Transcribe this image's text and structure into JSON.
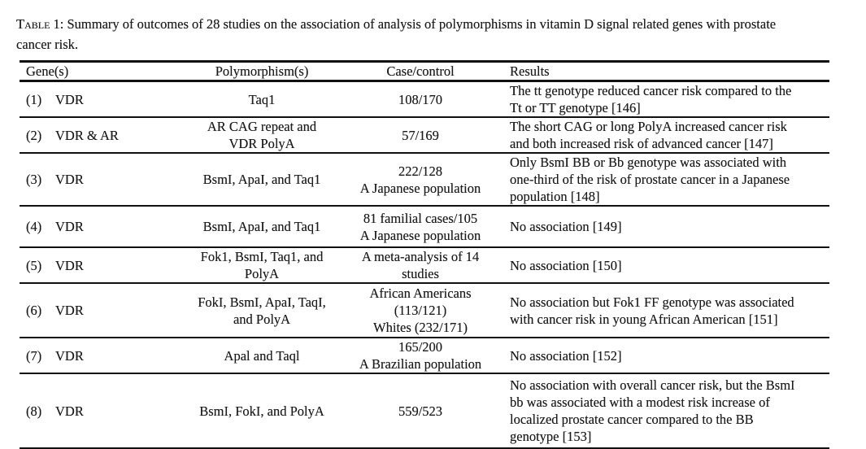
{
  "colors": {
    "background": "#ffffff",
    "text": "#1c1c1e",
    "rule": "#101010"
  },
  "caption": {
    "label": "Table 1:",
    "text": "Summary of outcomes of 28 studies on the association of analysis of polymorphisms in vitamin D signal related genes with prostate\ncancer risk."
  },
  "table": {
    "headers": [
      "Gene(s)",
      "Polymorphism(s)",
      "Case/control",
      "Results"
    ],
    "rows": [
      {
        "num": "(1)",
        "gene": "VDR",
        "polymorphism": "Taq1",
        "case_control": "108/170",
        "results": "The tt genotype reduced cancer risk compared to the\nTt or TT genotype [146]"
      },
      {
        "num": "(2)",
        "gene": "VDR & AR",
        "polymorphism": "AR CAG repeat and\nVDR PolyA",
        "case_control": "57/169",
        "results": "The short CAG or long PolyA increased cancer risk\nand both increased risk of advanced cancer [147]"
      },
      {
        "num": "(3)",
        "gene": "VDR",
        "polymorphism": "BsmI, ApaI, and Taq1",
        "case_control": "222/128\nA Japanese population",
        "results": "Only BsmI BB or Bb genotype was associated with\none-third of the risk of prostate cancer in a Japanese\npopulation [148]"
      },
      {
        "num": "(4)",
        "gene": "VDR",
        "polymorphism": "BsmI, ApaI, and Taq1",
        "case_control": "81 familial cases/105\nA Japanese population",
        "results": "No association [149]"
      },
      {
        "num": "(5)",
        "gene": "VDR",
        "polymorphism": "Fok1, BsmI, Taq1, and\nPolyA",
        "case_control": "A meta-analysis of 14\nstudies",
        "results": "No association [150]"
      },
      {
        "num": "(6)",
        "gene": "VDR",
        "polymorphism": "FokI, BsmI, ApaI, TaqI,\nand PolyA",
        "case_control": "African Americans\n(113/121)\nWhites (232/171)",
        "results": "No association but Fok1 FF genotype was associated\nwith cancer risk in young African American [151]"
      },
      {
        "num": "(7)",
        "gene": "VDR",
        "polymorphism": "Apal and Taql",
        "case_control": "165/200\nA Brazilian population",
        "results": "No association [152]"
      },
      {
        "num": "(8)",
        "gene": "VDR",
        "polymorphism": "BsmI, FokI, and PolyA",
        "case_control": "559/523",
        "results": "No association with overall cancer risk, but the BsmI\nbb was associated with a modest risk increase of\nlocalized prostate cancer compared to the BB\ngenotype [153]"
      }
    ]
  }
}
